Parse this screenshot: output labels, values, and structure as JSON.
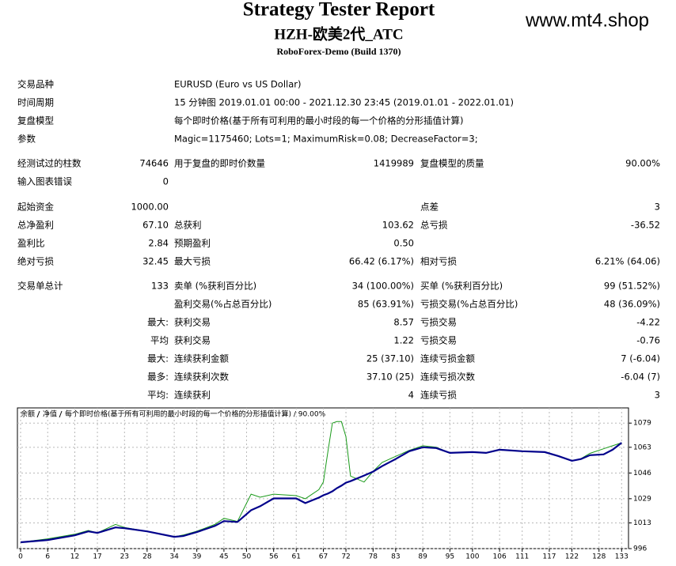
{
  "header": {
    "title": "Strategy Tester Report",
    "subtitle": "HZH-欧美2代_ATC",
    "server": "RoboForex-Demo (Build 1370)",
    "watermark": "www.mt4.shop"
  },
  "info": [
    [
      "交易品种",
      "EURUSD (Euro vs US Dollar)"
    ],
    [
      "时间周期",
      "15 分钟图 2019.01.01 00:00 - 2021.12.30 23:45 (2019.01.01 - 2022.01.01)"
    ],
    [
      "复盘模型",
      "每个即时价格(基于所有可利用的最小时段的每一个价格的分形插值计算)"
    ],
    [
      "参数",
      "Magic=1175460; Lots=1; MaximumRisk=0.08; DecreaseFactor=3;"
    ]
  ],
  "stats": [
    [
      "经测试过的柱数",
      "74646",
      "用于复盘的即时价数量",
      "1419989",
      "复盘模型的质量",
      "90.00%"
    ],
    [
      "输入图表错误",
      "0",
      null,
      null,
      null,
      null
    ],
    [
      "起始资金",
      "1000.00",
      null,
      null,
      "点差",
      "3"
    ],
    [
      "总净盈利",
      "67.10",
      "总获利",
      "103.62",
      "总亏损",
      "-36.52"
    ],
    [
      "盈利比",
      "2.84",
      "预期盈利",
      "0.50",
      null,
      null
    ],
    [
      "绝对亏损",
      "32.45",
      "最大亏损",
      "66.42 (6.17%)",
      "相对亏损",
      "6.21% (64.06)"
    ],
    [
      "交易单总计",
      "133",
      "卖单 (%获利百分比)",
      "34 (100.00%)",
      "买单 (%获利百分比)",
      "99 (51.52%)"
    ],
    [
      null,
      null,
      "盈利交易(%占总百分比)",
      "85 (63.91%)",
      "亏损交易(%占总百分比)",
      "48 (36.09%)"
    ],
    [
      null,
      "最大:",
      "获利交易",
      "8.57",
      "亏损交易",
      "-4.22"
    ],
    [
      null,
      "平均",
      "获利交易",
      "1.22",
      "亏损交易",
      "-0.76"
    ],
    [
      null,
      "最大:",
      "连续获利金额",
      "25 (37.10)",
      "连续亏损金额",
      "7 (-6.04)"
    ],
    [
      null,
      "最多:",
      "连续获利次数",
      "37.10 (25)",
      "连续亏损次数",
      "-6.04 (7)"
    ],
    [
      null,
      "平均:",
      "连续获利",
      "4",
      "连续亏损",
      "3"
    ]
  ],
  "chart_data": {
    "type": "line",
    "legend_note": "每个即时价格(基于所有可利用的最小时段的每一个价格的分形插值计算) / 90.00%",
    "x": [
      0,
      6,
      12,
      15,
      17,
      21,
      23,
      28,
      34,
      36,
      39,
      43,
      45,
      48,
      51,
      53,
      56,
      61,
      63,
      66,
      67,
      68,
      69,
      70,
      71,
      72,
      73,
      76,
      78,
      80,
      83,
      86,
      89,
      92,
      95,
      100,
      103,
      106,
      111,
      116,
      119,
      122,
      124,
      126,
      129,
      131,
      133
    ],
    "series": [
      {
        "name": "余额",
        "color": "#00008b",
        "values": [
          1000.2,
          1001.7,
          1004.8,
          1007.4,
          1006.4,
          1010.0,
          1009.5,
          1007.4,
          1003.8,
          1004.3,
          1006.9,
          1011.0,
          1014.2,
          1013.6,
          1021.4,
          1024.0,
          1029.2,
          1029.2,
          1026.1,
          1029.7,
          1031.3,
          1032.4,
          1033.9,
          1036.0,
          1037.6,
          1039.6,
          1040.6,
          1044.3,
          1046.9,
          1050.5,
          1055.2,
          1060.4,
          1063.0,
          1062.5,
          1059.3,
          1059.8,
          1059.3,
          1061.4,
          1060.4,
          1059.8,
          1057.2,
          1054.1,
          1055.2,
          1057.8,
          1058.3,
          1061.4,
          1066.0
        ]
      },
      {
        "name": "净值",
        "color": "#1a9a1a",
        "values": [
          1000.2,
          1002.5,
          1005.5,
          1008.0,
          1006.4,
          1012.0,
          1010.0,
          1007.4,
          1003.8,
          1005.0,
          1007.5,
          1012.0,
          1016.0,
          1014.0,
          1032.0,
          1030.0,
          1032.0,
          1031.0,
          1029.0,
          1035.0,
          1040.0,
          1060.0,
          1079.0,
          1080.0,
          1080.0,
          1070.0,
          1044.0,
          1040.0,
          1047.0,
          1053.0,
          1057.0,
          1061.0,
          1064.0,
          1063.0,
          1059.3,
          1059.8,
          1059.3,
          1061.4,
          1060.4,
          1059.8,
          1057.2,
          1054.1,
          1055.5,
          1059.0,
          1062.0,
          1064.0,
          1066.0
        ]
      }
    ],
    "xlim": [
      0,
      134
    ],
    "xticks": [
      0,
      6,
      12,
      17,
      23,
      28,
      34,
      39,
      45,
      50,
      56,
      61,
      67,
      72,
      78,
      83,
      89,
      95,
      100,
      106,
      111,
      117,
      122,
      128,
      133
    ],
    "ylim": [
      996,
      1088
    ],
    "yticks": [
      996,
      1013,
      1029,
      1046,
      1063,
      1079
    ],
    "grid": true
  }
}
